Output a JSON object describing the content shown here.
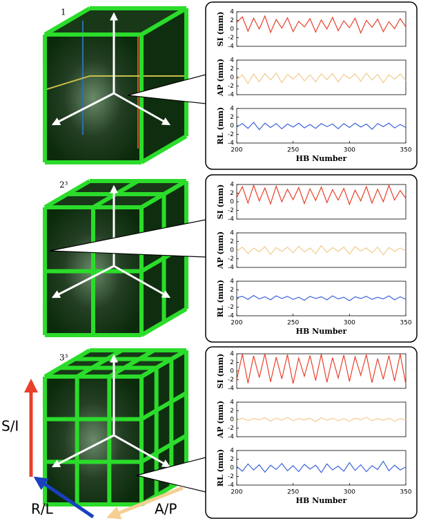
{
  "panel_labels": [
    "1",
    "2³",
    "3³"
  ],
  "direction_labels": [
    "S/I",
    "R/L",
    "A/P"
  ],
  "chart_data": [
    {
      "type": "line",
      "ylabel": "SI (mm)",
      "color": "#e8402a",
      "xlim": [
        200,
        350
      ],
      "ylim": [
        -4,
        4
      ],
      "yticks": [
        -4,
        -2,
        0,
        2,
        4
      ],
      "x": [
        200,
        205,
        210,
        215,
        220,
        225,
        230,
        235,
        240,
        245,
        250,
        255,
        260,
        265,
        270,
        275,
        280,
        285,
        290,
        295,
        300,
        305,
        310,
        315,
        320,
        325,
        330,
        335,
        340,
        345,
        350
      ],
      "values": [
        1.5,
        2.8,
        -0.5,
        2.5,
        0,
        3,
        -0.8,
        2.2,
        0.2,
        2.6,
        -0.6,
        1.8,
        0.5,
        2.4,
        -0.7,
        2.1,
        0,
        2.7,
        -0.4,
        1.9,
        0.3,
        2.5,
        -0.9,
        2,
        0.4,
        2.3,
        -0.6,
        1.7,
        0.1,
        2.4,
        0.5
      ]
    },
    {
      "type": "line",
      "ylabel": "AP (mm)",
      "color": "#f3c98c",
      "xlim": [
        200,
        350
      ],
      "ylim": [
        -4,
        4
      ],
      "yticks": [
        -4,
        -2,
        0,
        2,
        4
      ],
      "x": [
        200,
        205,
        210,
        215,
        220,
        225,
        230,
        235,
        240,
        245,
        250,
        255,
        260,
        265,
        270,
        275,
        280,
        285,
        290,
        295,
        300,
        305,
        310,
        315,
        320,
        325,
        330,
        335,
        340,
        345,
        350
      ],
      "values": [
        -0.5,
        0.6,
        -1.4,
        0.8,
        -1,
        0.9,
        -0.6,
        1,
        -1.2,
        0.7,
        -0.4,
        0.9,
        -0.8,
        0.6,
        -1,
        0.8,
        -0.5,
        0.9,
        -1.1,
        0.7,
        -0.3,
        0.8,
        -0.9,
        1,
        -0.6,
        0.7,
        -1.2,
        0.6,
        -0.4,
        0.8,
        -0.7
      ]
    },
    {
      "type": "line",
      "ylabel": "RL (mm)",
      "xlabel": "HB Number",
      "color": "#3b62d8",
      "xlim": [
        200,
        350
      ],
      "ylim": [
        -4,
        4
      ],
      "yticks": [
        -4,
        -2,
        0,
        2,
        4
      ],
      "xticks": [
        200,
        250,
        300,
        350
      ],
      "x": [
        200,
        205,
        210,
        215,
        220,
        225,
        230,
        235,
        240,
        245,
        250,
        255,
        260,
        265,
        270,
        275,
        280,
        285,
        290,
        295,
        300,
        305,
        310,
        315,
        320,
        325,
        330,
        335,
        340,
        345,
        350
      ],
      "values": [
        -0.3,
        0.5,
        -0.6,
        0.8,
        -0.9,
        0.6,
        -0.4,
        0.5,
        -0.7,
        0.4,
        -0.3,
        0.6,
        -0.5,
        0.3,
        -0.6,
        0.5,
        -0.2,
        0.4,
        -0.7,
        0.5,
        -0.4,
        0.6,
        -0.3,
        0.4,
        -0.8,
        0.5,
        -0.2,
        0.6,
        -0.5,
        0.3,
        -0.4
      ]
    },
    {
      "type": "line",
      "ylabel": "SI (mm)",
      "color": "#e8402a",
      "xlim": [
        200,
        350
      ],
      "ylim": [
        -4,
        4
      ],
      "yticks": [
        -4,
        -2,
        0,
        2,
        4
      ],
      "x": [
        200,
        205,
        210,
        215,
        220,
        225,
        230,
        235,
        240,
        245,
        250,
        255,
        260,
        265,
        270,
        275,
        280,
        285,
        290,
        295,
        300,
        305,
        310,
        315,
        320,
        325,
        330,
        335,
        340,
        345,
        350
      ],
      "values": [
        1,
        3.5,
        -0.3,
        3.8,
        0.2,
        3.2,
        -0.5,
        3.6,
        0,
        2.9,
        0.5,
        3.3,
        -0.4,
        3,
        0.3,
        3.4,
        -0.2,
        2.8,
        0.4,
        3.1,
        -0.6,
        2.7,
        0.2,
        3.5,
        -0.3,
        2.9,
        0,
        3.8,
        0.4,
        2.6,
        0.8
      ]
    },
    {
      "type": "line",
      "ylabel": "AP (mm)",
      "color": "#f3c98c",
      "xlim": [
        200,
        350
      ],
      "ylim": [
        -4,
        4
      ],
      "yticks": [
        -4,
        -2,
        0,
        2,
        4
      ],
      "x": [
        200,
        205,
        210,
        215,
        220,
        225,
        230,
        235,
        240,
        245,
        250,
        255,
        260,
        265,
        270,
        275,
        280,
        285,
        290,
        295,
        300,
        305,
        310,
        315,
        320,
        325,
        330,
        335,
        340,
        345,
        350
      ],
      "values": [
        -0.2,
        0.7,
        -0.8,
        0.5,
        -0.4,
        0.8,
        -1,
        0.6,
        -0.3,
        0.7,
        -0.6,
        0.9,
        -0.4,
        0.5,
        -0.8,
        1,
        -0.5,
        0.6,
        -0.3,
        0.7,
        -0.9,
        0.8,
        -0.2,
        0.5,
        -0.6,
        0.7,
        -1.1,
        0.6,
        -0.3,
        0.5,
        -0.2
      ]
    },
    {
      "type": "line",
      "ylabel": "RL (mm)",
      "xlabel": "HB Number",
      "color": "#3b62d8",
      "xlim": [
        200,
        350
      ],
      "ylim": [
        -4,
        4
      ],
      "yticks": [
        -4,
        -2,
        0,
        2,
        4
      ],
      "xticks": [
        200,
        250,
        300,
        350
      ],
      "x": [
        200,
        205,
        210,
        215,
        220,
        225,
        230,
        235,
        240,
        245,
        250,
        255,
        260,
        265,
        270,
        275,
        280,
        285,
        290,
        295,
        300,
        305,
        310,
        315,
        320,
        325,
        330,
        335,
        340,
        345,
        350
      ],
      "values": [
        0.2,
        0.5,
        -0.2,
        0.7,
        -0.1,
        0.4,
        -0.3,
        0.6,
        0,
        0.5,
        -0.2,
        0.3,
        -0.4,
        0.5,
        0,
        0.4,
        -0.3,
        0.6,
        -0.1,
        0.3,
        -0.5,
        0.4,
        0,
        0.5,
        -0.2,
        0.3,
        -0.1,
        0.6,
        -0.3,
        0.4,
        -0.2
      ]
    },
    {
      "type": "line",
      "ylabel": "SI (mm)",
      "color": "#e8402a",
      "xlim": [
        200,
        350
      ],
      "ylim": [
        -4,
        4
      ],
      "yticks": [
        -4,
        -2,
        0,
        2,
        4
      ],
      "x": [
        200,
        205,
        210,
        215,
        220,
        225,
        230,
        235,
        240,
        245,
        250,
        255,
        260,
        265,
        270,
        275,
        280,
        285,
        290,
        295,
        300,
        305,
        310,
        315,
        320,
        325,
        330,
        335,
        340,
        345,
        350
      ],
      "values": [
        -2,
        3.9,
        -2.8,
        3.5,
        -1.5,
        4,
        -2.5,
        3.2,
        -1.8,
        3.8,
        -2.9,
        3,
        -1.2,
        3.6,
        -2.2,
        3.9,
        -2.6,
        3.1,
        -1.6,
        3.7,
        -2.4,
        3.3,
        -1,
        3.8,
        -2.7,
        2.9,
        -1.9,
        3.6,
        -2.3,
        3.9,
        -3
      ]
    },
    {
      "type": "line",
      "ylabel": "AP (mm)",
      "color": "#f3c98c",
      "xlim": [
        200,
        350
      ],
      "ylim": [
        -4,
        4
      ],
      "yticks": [
        -4,
        -2,
        0,
        2,
        4
      ],
      "x": [
        200,
        205,
        210,
        215,
        220,
        225,
        230,
        235,
        240,
        245,
        250,
        255,
        260,
        265,
        270,
        275,
        280,
        285,
        290,
        295,
        300,
        305,
        310,
        315,
        320,
        325,
        330,
        335,
        340,
        345,
        350
      ],
      "values": [
        -0.2,
        0.3,
        -0.3,
        0.2,
        -0.1,
        0.4,
        -0.4,
        0.3,
        -0.2,
        0.5,
        -0.3,
        0.2,
        -0.1,
        0.3,
        -0.5,
        0.4,
        -0.2,
        0.3,
        -0.3,
        0.2,
        -0.4,
        0.3,
        -0.1,
        0.5,
        -0.3,
        0.2,
        -0.2,
        0.3,
        -0.4,
        0.2,
        -0.1
      ]
    },
    {
      "type": "line",
      "ylabel": "RL (mm)",
      "xlabel": "HB Number",
      "color": "#3b62d8",
      "xlim": [
        200,
        350
      ],
      "ylim": [
        -4,
        4
      ],
      "yticks": [
        -4,
        -2,
        0,
        2,
        4
      ],
      "xticks": [
        200,
        250,
        300,
        350
      ],
      "x": [
        200,
        205,
        210,
        215,
        220,
        225,
        230,
        235,
        240,
        245,
        250,
        255,
        260,
        265,
        270,
        275,
        280,
        285,
        290,
        295,
        300,
        305,
        310,
        315,
        320,
        325,
        330,
        335,
        340,
        345,
        350
      ],
      "values": [
        0.3,
        -0.8,
        0.9,
        -0.5,
        0.7,
        -1,
        0.6,
        -0.4,
        1,
        -0.7,
        0.5,
        -0.9,
        0.8,
        -0.3,
        0.6,
        -1.1,
        0.9,
        -0.5,
        0.4,
        -0.8,
        1.2,
        -0.6,
        0.7,
        -0.9,
        0.5,
        -0.4,
        1.5,
        -0.7,
        0.6,
        -0.5,
        0.2
      ]
    }
  ]
}
